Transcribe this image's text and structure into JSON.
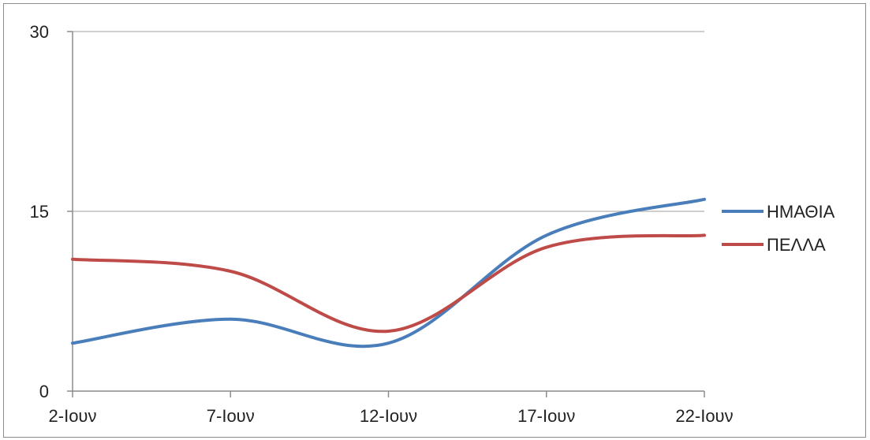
{
  "chart_data": {
    "type": "line",
    "categories": [
      "2-Ιουν",
      "7-Ιουν",
      "12-Ιουν",
      "17-Ιουν",
      "22-Ιουν"
    ],
    "series": [
      {
        "name": "ΗΜΑΘΙΑ",
        "color": "#4a7ebb",
        "values": [
          4,
          6,
          4,
          13,
          16
        ]
      },
      {
        "name": "ΠΕΛΛΑ",
        "color": "#be4b48",
        "values": [
          11,
          10,
          5,
          12,
          13
        ]
      }
    ],
    "yticks": [
      "0",
      "15",
      "30"
    ],
    "ylim": [
      0,
      30
    ],
    "grid": true,
    "legend": "right"
  }
}
